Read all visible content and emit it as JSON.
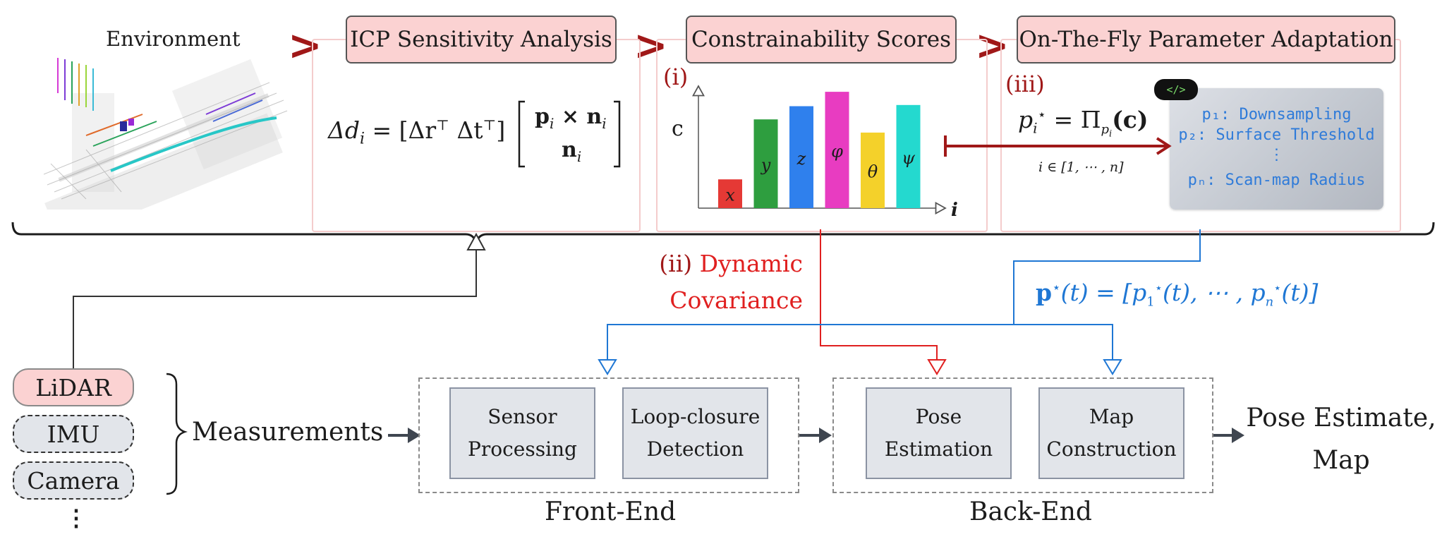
{
  "stages": {
    "environment_label": "Environment",
    "icp": "ICP Sensitivity Analysis",
    "constrainability": "Constrainability Scores",
    "adaptation": "On-The-Fly Parameter Adaptation"
  },
  "markers": {
    "i": "(i)",
    "ii": "(ii)",
    "iii": "(iii)"
  },
  "formulas": {
    "delta_d_lhs": "Δd",
    "delta_d_sub": "i",
    "delta_d_eq": " = [Δr",
    "delta_d_eq2": " Δt",
    "delta_d_close": "]",
    "matrix_row1": "p",
    "matrix_row1_rest": " × n",
    "matrix_row2": "n",
    "p_star_lhs": "p",
    "p_star_rhs": " = Π",
    "p_star_arg": "(c)",
    "index_range": "i ∈ [1, ⋯ , n]",
    "p_vector": "p",
    "p_vector_rest": "(t) = [p",
    "p_vector_mid": "(t),  ⋯ ,  p",
    "p_vector_end": "(t)]"
  },
  "chart_data": {
    "type": "bar",
    "categories": [
      "x",
      "y",
      "z",
      "φ",
      "θ",
      "ψ"
    ],
    "values": [
      0.24,
      0.74,
      0.85,
      0.97,
      0.63,
      0.86
    ],
    "colors": [
      "#e53935",
      "#2e9e3f",
      "#2f80ed",
      "#e83cc1",
      "#f4d12a",
      "#24d9cf"
    ],
    "ylabel": "c",
    "xlabel": "i",
    "ylim": [
      0,
      1
    ]
  },
  "parameters": {
    "badge": "</>",
    "lines": [
      "p₁: Downsampling",
      "p₂: Surface Threshold",
      "⋮",
      "pₙ: Scan-map Radius"
    ]
  },
  "dynamic_covariance": {
    "line1": "Dynamic",
    "line2": "Covariance"
  },
  "sensors": [
    "LiDAR",
    "IMU",
    "Camera"
  ],
  "sensor_more": "⋮",
  "measurements": "Measurements",
  "front_end": {
    "label": "Front-End",
    "modules": [
      {
        "line1": "Sensor",
        "line2": "Processing"
      },
      {
        "line1": "Loop-closure",
        "line2": "Detection"
      }
    ]
  },
  "back_end": {
    "label": "Back-End",
    "modules": [
      {
        "line1": "Pose",
        "line2": "Estimation"
      },
      {
        "line1": "Map",
        "line2": "Construction"
      }
    ]
  },
  "output": {
    "line1": "Pose Estimate,",
    "line2": "Map"
  },
  "colors": {
    "accent_red": "#a01818",
    "bright_red": "#e02020",
    "blue": "#1f77d4",
    "pink_fill": "#fbd2d2",
    "module_fill": "#e2e5ea"
  }
}
